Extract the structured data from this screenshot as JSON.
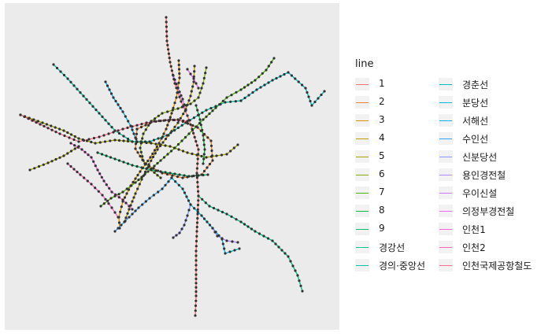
{
  "chart_data": {
    "type": "network",
    "title": "",
    "xlabel": "",
    "ylabel": "",
    "grid": false,
    "legend": {
      "title": "line",
      "position": "right",
      "columns": 2,
      "entries": [
        {
          "name": "1",
          "color": "#F8766D"
        },
        {
          "name": "2",
          "color": "#EB8335"
        },
        {
          "name": "3",
          "color": "#D89000"
        },
        {
          "name": "4",
          "color": "#BF9B00"
        },
        {
          "name": "5",
          "color": "#A3A500"
        },
        {
          "name": "6",
          "color": "#80AE00"
        },
        {
          "name": "7",
          "color": "#4AB500"
        },
        {
          "name": "8",
          "color": "#00BA38"
        },
        {
          "name": "9",
          "color": "#00BD68"
        },
        {
          "name": "경강선",
          "color": "#00C08B"
        },
        {
          "name": "경의·중앙선",
          "color": "#00C0A9"
        },
        {
          "name": "경춘선",
          "color": "#00BEC4"
        },
        {
          "name": "분당선",
          "color": "#00B9DB"
        },
        {
          "name": "서해선",
          "color": "#00B0F6"
        },
        {
          "name": "수인선",
          "color": "#35A2FF"
        },
        {
          "name": "신분당선",
          "color": "#8794FF"
        },
        {
          "name": "용인경전철",
          "color": "#B385FF"
        },
        {
          "name": "우이신설",
          "color": "#D376FF"
        },
        {
          "name": "의정부경전철",
          "color": "#EA6AF1"
        },
        {
          "name": "인천1",
          "color": "#F862DF"
        },
        {
          "name": "인천2",
          "color": "#FF62BC"
        },
        {
          "name": "인천국제공항철도",
          "color": "#FF6C91"
        }
      ]
    },
    "series": [
      {
        "name": "1",
        "points": [
          [
            205,
            18
          ],
          [
            206,
            48
          ],
          [
            210,
            75
          ],
          [
            216,
            102
          ],
          [
            224,
            125
          ],
          [
            232,
            143
          ],
          [
            238,
            160
          ],
          [
            246,
            186
          ],
          [
            244,
            216
          ],
          [
            246,
            245
          ],
          [
            245,
            268
          ],
          [
            244,
            290
          ],
          [
            243,
            315
          ],
          [
            243,
            345
          ],
          [
            243,
            372
          ],
          [
            242,
            397
          ]
        ]
      },
      {
        "name": "2",
        "points": [
          [
            168,
            160
          ],
          [
            190,
            150
          ],
          [
            220,
            148
          ],
          [
            245,
            158
          ],
          [
            262,
            175
          ],
          [
            264,
            200
          ],
          [
            250,
            218
          ],
          [
            226,
            222
          ],
          [
            200,
            216
          ],
          [
            178,
            204
          ],
          [
            166,
            185
          ],
          [
            168,
            160
          ]
        ]
      },
      {
        "name": "3",
        "points": [
          [
            221,
            73
          ],
          [
            222,
            95
          ],
          [
            218,
            120
          ],
          [
            212,
            140
          ],
          [
            205,
            160
          ],
          [
            196,
            178
          ],
          [
            185,
            196
          ],
          [
            172,
            214
          ],
          [
            160,
            232
          ],
          [
            150,
            252
          ],
          [
            145,
            272
          ],
          [
            146,
            286
          ]
        ]
      },
      {
        "name": "4",
        "points": [
          [
            241,
            80
          ],
          [
            240,
            100
          ],
          [
            236,
            118
          ],
          [
            230,
            135
          ],
          [
            220,
            152
          ],
          [
            208,
            168
          ],
          [
            194,
            186
          ],
          [
            183,
            205
          ],
          [
            174,
            224
          ],
          [
            166,
            242
          ],
          [
            158,
            262
          ],
          [
            152,
            278
          ]
        ]
      },
      {
        "name": "5",
        "points": [
          [
            20,
            142
          ],
          [
            48,
            152
          ],
          [
            75,
            162
          ],
          [
            94,
            172
          ],
          [
            115,
            178
          ],
          [
            140,
            174
          ],
          [
            162,
            176
          ],
          [
            186,
            178
          ],
          [
            210,
            182
          ],
          [
            232,
            190
          ],
          [
            256,
            196
          ],
          [
            282,
            192
          ],
          [
            296,
            180
          ]
        ]
      },
      {
        "name": "5",
        "points": [
          [
            32,
            212
          ],
          [
            55,
            203
          ],
          [
            75,
            194
          ],
          [
            94,
            182
          ]
        ]
      },
      {
        "name": "6",
        "points": [
          [
            256,
            82
          ],
          [
            252,
            102
          ],
          [
            246,
            120
          ],
          [
            236,
            128
          ],
          [
            220,
            134
          ],
          [
            200,
            140
          ],
          [
            186,
            150
          ],
          [
            176,
            166
          ],
          [
            172,
            184
          ],
          [
            176,
            200
          ],
          [
            186,
            212
          ],
          [
            198,
            222
          ]
        ]
      },
      {
        "name": "7",
        "points": [
          [
            342,
            70
          ],
          [
            332,
            85
          ],
          [
            318,
            98
          ],
          [
            300,
            110
          ],
          [
            282,
            120
          ],
          [
            268,
            133
          ],
          [
            252,
            148
          ],
          [
            234,
            166
          ],
          [
            216,
            184
          ],
          [
            198,
            200
          ],
          [
            182,
            214
          ],
          [
            166,
            228
          ],
          [
            150,
            240
          ],
          [
            135,
            248
          ],
          [
            122,
            258
          ]
        ]
      },
      {
        "name": "8",
        "points": [
          [
            243,
            130
          ],
          [
            248,
            148
          ],
          [
            252,
            168
          ],
          [
            254,
            186
          ],
          [
            252,
            204
          ]
        ]
      },
      {
        "name": "9",
        "points": [
          [
            118,
            190
          ],
          [
            140,
            198
          ],
          [
            162,
            206
          ],
          [
            186,
            212
          ],
          [
            210,
            216
          ],
          [
            234,
            220
          ],
          [
            258,
            218
          ]
        ]
      },
      {
        "name": "경강선",
        "points": [
          [
            246,
            245
          ],
          [
            260,
            258
          ],
          [
            282,
            268
          ],
          [
            300,
            278
          ],
          [
            318,
            290
          ],
          [
            340,
            302
          ],
          [
            360,
            322
          ],
          [
            372,
            346
          ],
          [
            378,
            366
          ]
        ]
      },
      {
        "name": "경의·중앙선",
        "points": [
          [
            62,
            78
          ],
          [
            80,
            96
          ],
          [
            100,
            118
          ],
          [
            120,
            140
          ],
          [
            140,
            162
          ],
          [
            162,
            176
          ],
          [
            184,
            176
          ],
          [
            206,
            168
          ],
          [
            230,
            152
          ],
          [
            256,
            136
          ],
          [
            280,
            126
          ],
          [
            300,
            124
          ]
        ]
      },
      {
        "name": "경춘선",
        "points": [
          [
            300,
            124
          ],
          [
            320,
            110
          ],
          [
            340,
            98
          ],
          [
            360,
            88
          ],
          [
            382,
            108
          ],
          [
            390,
            130
          ],
          [
            406,
            112
          ]
        ]
      },
      {
        "name": "분당선",
        "points": [
          [
            212,
            222
          ],
          [
            226,
            236
          ],
          [
            236,
            256
          ],
          [
            250,
            270
          ],
          [
            264,
            286
          ],
          [
            276,
            300
          ],
          [
            280,
            318
          ],
          [
            298,
            312
          ]
        ]
      },
      {
        "name": "서해선",
        "points": [
          [
            128,
            100
          ],
          [
            138,
            120
          ],
          [
            150,
            138
          ],
          [
            160,
            156
          ],
          [
            168,
            176
          ]
        ]
      },
      {
        "name": "수인선",
        "points": [
          [
            212,
            222
          ],
          [
            200,
            236
          ],
          [
            184,
            248
          ],
          [
            170,
            260
          ],
          [
            158,
            272
          ],
          [
            148,
            282
          ],
          [
            140,
            290
          ]
        ]
      },
      {
        "name": "신분당선",
        "points": [
          [
            236,
            256
          ],
          [
            232,
            270
          ],
          [
            228,
            282
          ],
          [
            222,
            292
          ],
          [
            214,
            298
          ]
        ]
      },
      {
        "name": "용인경전철",
        "points": [
          [
            264,
            286
          ],
          [
            270,
            296
          ],
          [
            282,
            302
          ],
          [
            296,
            304
          ]
        ]
      },
      {
        "name": "우이신설",
        "points": [
          [
            214,
            92
          ],
          [
            220,
            108
          ],
          [
            226,
            122
          ],
          [
            230,
            136
          ]
        ]
      },
      {
        "name": "의정부경전철",
        "points": [
          [
            232,
            84
          ],
          [
            240,
            96
          ],
          [
            246,
            108
          ]
        ]
      },
      {
        "name": "인천1",
        "points": [
          [
            84,
            178
          ],
          [
            98,
            186
          ],
          [
            110,
            196
          ],
          [
            118,
            212
          ],
          [
            126,
            226
          ],
          [
            136,
            240
          ],
          [
            150,
            250
          ],
          [
            162,
            262
          ]
        ]
      },
      {
        "name": "인천2",
        "points": [
          [
            80,
            204
          ],
          [
            96,
            218
          ],
          [
            110,
            230
          ],
          [
            124,
            244
          ],
          [
            136,
            260
          ],
          [
            144,
            272
          ]
        ]
      },
      {
        "name": "인천국제공항철도",
        "points": [
          [
            20,
            142
          ],
          [
            45,
            154
          ],
          [
            70,
            166
          ],
          [
            94,
            176
          ],
          [
            120,
            170
          ],
          [
            150,
            160
          ],
          [
            180,
            152
          ],
          [
            210,
            148
          ],
          [
            232,
            150
          ]
        ]
      }
    ]
  }
}
